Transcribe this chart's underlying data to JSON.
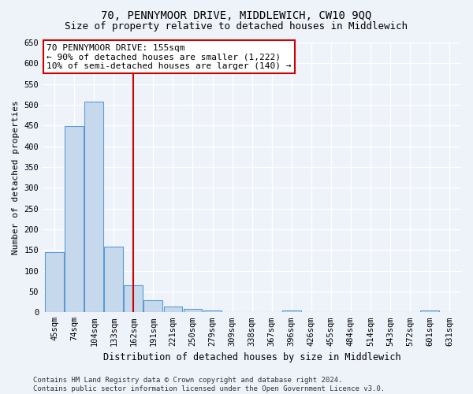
{
  "title": "70, PENNYMOOR DRIVE, MIDDLEWICH, CW10 9QQ",
  "subtitle": "Size of property relative to detached houses in Middlewich",
  "xlabel": "Distribution of detached houses by size in Middlewich",
  "ylabel": "Number of detached properties",
  "categories": [
    "45sqm",
    "74sqm",
    "104sqm",
    "133sqm",
    "162sqm",
    "191sqm",
    "221sqm",
    "250sqm",
    "279sqm",
    "309sqm",
    "338sqm",
    "367sqm",
    "396sqm",
    "426sqm",
    "455sqm",
    "484sqm",
    "514sqm",
    "543sqm",
    "572sqm",
    "601sqm",
    "631sqm"
  ],
  "values": [
    145,
    448,
    507,
    158,
    65,
    30,
    14,
    8,
    5,
    0,
    0,
    0,
    5,
    0,
    0,
    0,
    0,
    0,
    0,
    5,
    0
  ],
  "bar_color": "#c6d9ec",
  "bar_edge_color": "#5b9bd5",
  "vline_x": 4.0,
  "vline_color": "#cc0000",
  "annotation_line1": "70 PENNYMOOR DRIVE: 155sqm",
  "annotation_line2": "← 90% of detached houses are smaller (1,222)",
  "annotation_line3": "10% of semi-detached houses are larger (140) →",
  "annotation_box_color": "#ffffff",
  "annotation_box_edge": "#cc0000",
  "ylim": [
    0,
    650
  ],
  "yticks": [
    0,
    50,
    100,
    150,
    200,
    250,
    300,
    350,
    400,
    450,
    500,
    550,
    600,
    650
  ],
  "footer": "Contains HM Land Registry data © Crown copyright and database right 2024.\nContains public sector information licensed under the Open Government Licence v3.0.",
  "background_color": "#eef2f9",
  "grid_color": "#ffffff",
  "title_fontsize": 10,
  "subtitle_fontsize": 9,
  "xlabel_fontsize": 8.5,
  "ylabel_fontsize": 8,
  "tick_fontsize": 7.5,
  "footer_fontsize": 6.5,
  "annotation_fontsize": 8
}
